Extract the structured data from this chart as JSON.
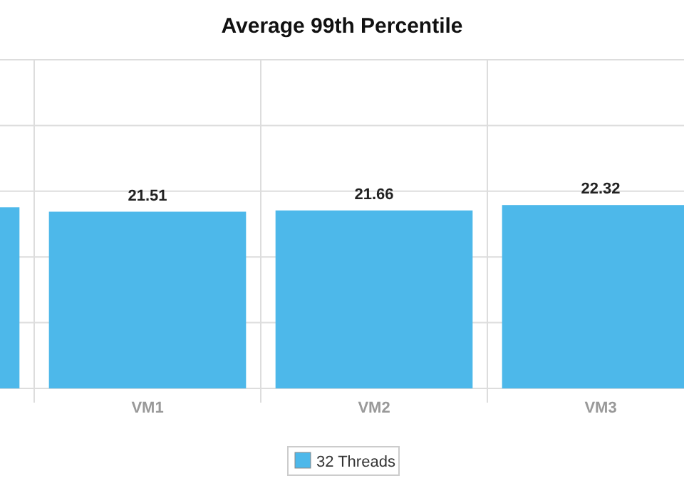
{
  "chart_data": {
    "type": "bar",
    "title": "Average 99th Percentile",
    "categories": [
      null,
      "VM1",
      "VM2",
      "VM3"
    ],
    "series": [
      {
        "name": "32 Threads",
        "color": "#4db8ea",
        "values": [
          22.05,
          21.51,
          21.66,
          22.32
        ],
        "value_labels": [
          null,
          "21.51",
          "21.66",
          "22.32"
        ]
      }
    ],
    "ylim": [
      0,
      40
    ],
    "yticks": [
      {
        "value": 0,
        "label": null
      },
      {
        "value": 8,
        "label": null
      },
      {
        "value": 16,
        "label": null
      },
      {
        "value": 24,
        "label": null
      },
      {
        "value": 32,
        "label": null
      },
      {
        "value": 40,
        "label": null
      }
    ],
    "grid": true,
    "legend": "bottom",
    "tick_labels": "x"
  }
}
